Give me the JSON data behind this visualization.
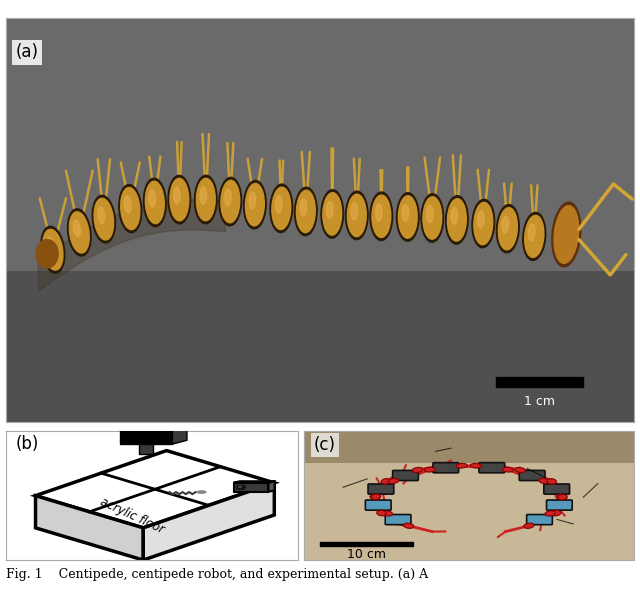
{
  "figure_title": "Fig. 1    Centipede, centipede robot, and experimental setup. (a) A",
  "panel_a_label": "(a)",
  "panel_b_label": "(b)",
  "panel_c_label": "(c)",
  "scale_bar_a_text": "1 cm",
  "scale_bar_c_text": "10 cm",
  "acrylic_floor_label": "acrylic floor",
  "bg_color": "#ffffff",
  "caption_text": "Fig. 1    Centipede, centipede robot, and experimental setup. (a) A",
  "caption_fontsize": 9,
  "label_fontsize": 11,
  "figsize": [
    6.4,
    5.99
  ],
  "dpi": 100,
  "centipede_bg": "#5c5c5c",
  "centipede_body_color": "#c8922a",
  "centipede_leg_color": "#d4a534",
  "centipede_dark": "#2a1a08",
  "robot_bg": "#c8b898",
  "robot_red": "#cc2222",
  "robot_blue": "#5599bb",
  "robot_dark": "#333333",
  "diagram_bg": "#ffffff",
  "diagram_black": "#000000",
  "diagram_darkgray": "#3a3a3a",
  "diagram_midgray": "#888888",
  "diagram_lightgray": "#d0d0d0"
}
